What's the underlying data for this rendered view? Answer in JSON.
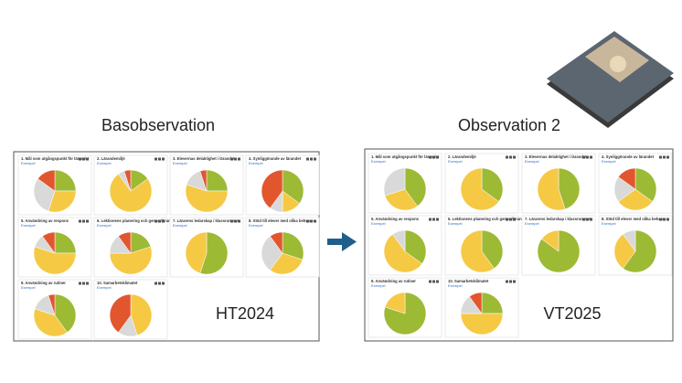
{
  "slice_colors": [
    "#9dba35",
    "#f6c945",
    "#d9d9d9",
    "#e2562e"
  ],
  "panels": [
    {
      "heading": "Basobservation",
      "period": "HT2024",
      "cards": [
        {
          "title": "1. Mål som utgångspunkt för lärandet",
          "link": "Exempel",
          "values": [
            25,
            30,
            30,
            15
          ]
        },
        {
          "title": "2. Lärandemiljö",
          "link": "Exempel",
          "values": [
            15,
            75,
            5,
            5
          ]
        },
        {
          "title": "3. Elevernas delaktighet i lärandet",
          "link": "Exempel",
          "values": [
            25,
            55,
            15,
            5
          ]
        },
        {
          "title": "4. Synliggörande av lärandet",
          "link": "Exempel",
          "values": [
            35,
            15,
            10,
            40
          ]
        },
        {
          "title": "5. Användning av respons",
          "link": "Exempel",
          "values": [
            25,
            55,
            10,
            10
          ]
        },
        {
          "title": "6. Lektionens planering och genomförande",
          "link": "Exempel",
          "values": [
            20,
            55,
            15,
            10
          ]
        },
        {
          "title": "7. Lärarens ledarskap i klassrummet",
          "link": "Exempel",
          "values": [
            55,
            45,
            0,
            0
          ]
        },
        {
          "title": "8. Stöd till elever med olika behov –",
          "link": "Exempel",
          "values": [
            30,
            30,
            30,
            10
          ]
        },
        {
          "title": "9. Användning av rutiner",
          "link": "Exempel",
          "values": [
            40,
            40,
            15,
            5
          ]
        },
        {
          "title": "10. Samarbetsklimatet",
          "link": "Exempel",
          "values": [
            0,
            45,
            15,
            40
          ]
        }
      ]
    },
    {
      "heading": "Observation 2",
      "period": "VT2025",
      "cards": [
        {
          "title": "1. Mål som utgångspunkt för lärandet",
          "link": "Exempel",
          "values": [
            40,
            30,
            30,
            0
          ]
        },
        {
          "title": "2. Lärandemiljö",
          "link": "Exempel",
          "values": [
            35,
            65,
            0,
            0
          ]
        },
        {
          "title": "3. Elevernas delaktighet i lärandet",
          "link": "Exempel",
          "values": [
            45,
            55,
            0,
            0
          ]
        },
        {
          "title": "4. Synliggörande av lärandet",
          "link": "Exempel",
          "values": [
            35,
            30,
            20,
            15
          ]
        },
        {
          "title": "5. Användning av respons",
          "link": "Exempel",
          "values": [
            35,
            55,
            10,
            0
          ]
        },
        {
          "title": "6. Lektionens planering och genomförande",
          "link": "Exempel",
          "values": [
            40,
            60,
            0,
            0
          ]
        },
        {
          "title": "7. Lärarens ledarskap i klassrummet",
          "link": "Exempel",
          "values": [
            85,
            15,
            0,
            0
          ]
        },
        {
          "title": "8. Stöd till elever med olika behov –",
          "link": "Exempel",
          "values": [
            60,
            30,
            10,
            0
          ]
        },
        {
          "title": "9. Användning av rutiner",
          "link": "Exempel",
          "values": [
            80,
            20,
            0,
            0
          ]
        },
        {
          "title": "10. Samarbetsklimatet",
          "link": "Exempel",
          "values": [
            25,
            50,
            15,
            10
          ]
        }
      ]
    }
  ]
}
